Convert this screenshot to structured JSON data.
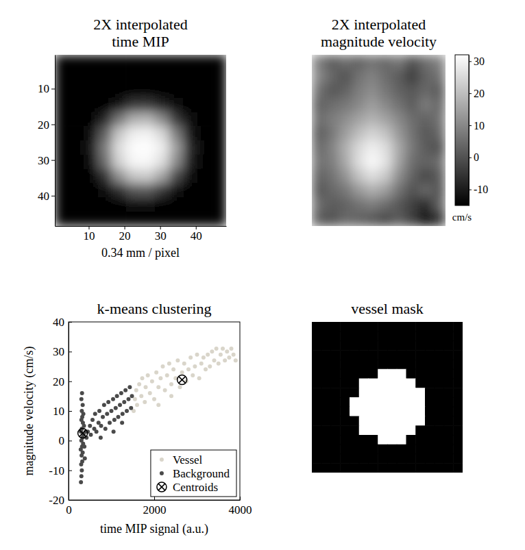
{
  "chart_data": [
    {
      "type": "heatmap",
      "title": "2X interpolated time MIP",
      "xlabel": "0.34 mm / pixel",
      "color": "gray",
      "xlim": [
        0.5,
        48.5
      ],
      "ylim": [
        48.5,
        0.5
      ],
      "xticks": [
        10,
        20,
        30,
        40
      ],
      "yticks": [
        10,
        20,
        30,
        40
      ],
      "xbins": [
        0.5,
        4.5,
        8.5,
        12.5,
        16.5,
        20.5,
        24.5,
        28.5,
        32.5,
        36.5,
        40.5,
        44.5,
        48.5
      ],
      "ybins": [
        0.5,
        4.5,
        8.5,
        12.5,
        16.5,
        20.5,
        24.5,
        28.5,
        32.5,
        36.5,
        40.5,
        44.5,
        48.5
      ],
      "zlim": [
        300,
        3800
      ],
      "cells": [
        [
          300,
          300,
          300,
          300,
          300,
          300,
          300,
          300,
          300,
          300,
          300,
          300
        ],
        [
          300,
          300,
          300,
          300,
          300,
          300,
          300,
          300,
          300,
          300,
          300,
          300
        ],
        [
          300,
          300,
          300,
          300,
          310,
          350,
          350,
          320,
          300,
          300,
          300,
          300
        ],
        [
          300,
          300,
          300,
          370,
          640,
          1050,
          1100,
          790,
          420,
          300,
          300,
          300
        ],
        [
          300,
          300,
          340,
          820,
          1940,
          2700,
          2780,
          2200,
          1050,
          390,
          300,
          300
        ],
        [
          300,
          300,
          470,
          1620,
          3020,
          3560,
          3620,
          3250,
          2000,
          620,
          300,
          300
        ],
        [
          300,
          300,
          580,
          2000,
          3350,
          3760,
          3790,
          3550,
          2450,
          820,
          320,
          300
        ],
        [
          300,
          300,
          520,
          1800,
          3180,
          3680,
          3710,
          3350,
          2200,
          680,
          310,
          300
        ],
        [
          300,
          300,
          370,
          1000,
          2290,
          3020,
          3100,
          2550,
          1320,
          450,
          300,
          300
        ],
        [
          300,
          300,
          300,
          420,
          930,
          1480,
          1530,
          1050,
          520,
          310,
          300,
          300
        ],
        [
          300,
          300,
          300,
          300,
          340,
          420,
          420,
          360,
          300,
          300,
          300,
          300
        ],
        [
          300,
          300,
          300,
          300,
          300,
          300,
          300,
          300,
          300,
          300,
          300,
          300
        ]
      ]
    },
    {
      "type": "heatmap",
      "title": "2X interpolated magnitude velocity",
      "color": "gray",
      "tick_labels": false,
      "zlim": [
        -15,
        32
      ],
      "zticks": [
        -10,
        0,
        10,
        20,
        30
      ],
      "zlabel": "cm/s",
      "cells": [
        [
          8,
          2,
          5,
          3,
          6,
          4,
          7,
          0,
          5,
          9
        ],
        [
          10,
          4,
          0,
          6,
          9,
          5,
          2,
          -4,
          3,
          6
        ],
        [
          6,
          1,
          3,
          8,
          11,
          7,
          3,
          1,
          4,
          2
        ],
        [
          3,
          5,
          7,
          10,
          14,
          10,
          6,
          2,
          8,
          4
        ],
        [
          5,
          8,
          11,
          15,
          18,
          15,
          10,
          5,
          3,
          6
        ],
        [
          2,
          7,
          14,
          20,
          24,
          21,
          13,
          6,
          1,
          4
        ],
        [
          4,
          9,
          17,
          25,
          29,
          26,
          16,
          7,
          2,
          0
        ],
        [
          6,
          8,
          16,
          26,
          31,
          27,
          15,
          5,
          3,
          5
        ],
        [
          3,
          6,
          12,
          21,
          26,
          22,
          11,
          3,
          -2,
          2
        ],
        [
          1,
          4,
          7,
          13,
          17,
          14,
          6,
          0,
          4,
          1
        ],
        [
          5,
          2,
          3,
          6,
          8,
          5,
          1,
          -3,
          -8,
          3
        ],
        [
          2,
          0,
          4,
          3,
          1,
          -2,
          2,
          -4,
          -12,
          -6
        ]
      ]
    },
    {
      "type": "scatter",
      "title": "k-means clustering",
      "xlabel": "time MIP signal (a.u.)",
      "ylabel": "magnitude velocity (cm/s)",
      "xlim": [
        0,
        4000
      ],
      "ylim": [
        -20,
        40
      ],
      "xticks": [
        0,
        2000,
        4000
      ],
      "yticks": [
        -20,
        -10,
        0,
        10,
        20,
        30,
        40
      ],
      "legend": "lower right",
      "series": [
        {
          "name": "Vessel",
          "color": "#d9d5ca",
          "marker": "circle",
          "x": [
            1520,
            1550,
            1580,
            1600,
            1650,
            1700,
            1720,
            1780,
            1800,
            1850,
            1900,
            1950,
            2000,
            2050,
            2100,
            2150,
            2200,
            2250,
            2300,
            2350,
            2400,
            2450,
            2500,
            2550,
            2600,
            2650,
            2700,
            2750,
            2800,
            2850,
            2900,
            2950,
            3000,
            3050,
            3100,
            3150,
            3200,
            3250,
            3300,
            3350,
            3400,
            3450,
            3500,
            3550,
            3600,
            3650,
            3700,
            3750,
            3800,
            3850,
            3900,
            2100,
            2400
          ],
          "values": [
            10,
            14,
            17,
            12,
            19,
            15,
            21,
            13,
            18,
            22,
            16,
            20,
            14,
            23,
            18,
            21,
            25,
            17,
            22,
            26,
            19,
            24,
            21,
            27,
            18,
            23,
            26,
            20,
            24,
            28,
            22,
            25,
            29,
            21,
            26,
            28,
            24,
            29,
            25,
            30,
            27,
            31,
            26,
            29,
            31,
            27,
            30,
            28,
            31,
            29,
            27,
            12,
            15
          ]
        },
        {
          "name": "Background",
          "color": "#4a4a4a",
          "marker": "circle",
          "x": [
            290,
            300,
            310,
            295,
            320,
            305,
            330,
            285,
            315,
            340,
            300,
            325,
            350,
            290,
            310,
            360,
            335,
            300,
            320,
            345,
            310,
            330,
            300,
            315,
            380,
            400,
            420,
            370,
            450,
            500,
            520,
            560,
            600,
            620,
            650,
            700,
            720,
            760,
            800,
            830,
            860,
            900,
            930,
            960,
            1000,
            1040,
            1070,
            1100,
            1130,
            1160,
            1200,
            1230,
            1260,
            1300,
            1330,
            1360,
            1400,
            1430,
            1460,
            1480,
            1050,
            750,
            1250
          ],
          "values": [
            -14,
            -12,
            -10,
            -8,
            -7,
            -5,
            -4,
            -3,
            -2,
            -1,
            0,
            1,
            2,
            3,
            4,
            5,
            6,
            7,
            8,
            9,
            10,
            12,
            14,
            16,
            -6,
            3,
            1,
            -2,
            3,
            5,
            2,
            7,
            4,
            9,
            3,
            6,
            10,
            5,
            8,
            12,
            4,
            9,
            13,
            6,
            10,
            14,
            7,
            11,
            15,
            8,
            12,
            16,
            9,
            13,
            17,
            10,
            14,
            18,
            11,
            15,
            3,
            1,
            6
          ]
        },
        {
          "name": "Centroids",
          "color": "#000000",
          "marker": "circle-x",
          "x": [
            330,
            2650
          ],
          "values": [
            2.5,
            20.5
          ]
        }
      ]
    },
    {
      "type": "heatmap",
      "title": "vessel mask",
      "color": "gray",
      "tick_labels": false,
      "cells": [
        [
          0,
          0,
          0,
          0,
          0,
          0,
          0,
          0,
          0,
          0,
          0,
          0,
          0,
          0,
          0,
          0
        ],
        [
          0,
          0,
          0,
          0,
          0,
          0,
          0,
          0,
          0,
          0,
          0,
          0,
          0,
          0,
          0,
          0
        ],
        [
          0,
          0,
          0,
          0,
          0,
          0,
          0,
          0,
          0,
          0,
          0,
          0,
          0,
          0,
          0,
          0
        ],
        [
          0,
          0,
          0,
          0,
          0,
          0,
          0,
          0,
          0,
          0,
          0,
          0,
          0,
          0,
          0,
          0
        ],
        [
          0,
          0,
          0,
          0,
          0,
          0,
          0,
          0,
          0,
          0,
          0,
          0,
          0,
          0,
          0,
          0
        ],
        [
          0,
          0,
          0,
          0,
          0,
          0,
          0,
          1,
          1,
          1,
          0,
          0,
          0,
          0,
          0,
          0
        ],
        [
          0,
          0,
          0,
          0,
          0,
          1,
          1,
          1,
          1,
          1,
          1,
          0,
          0,
          0,
          0,
          0
        ],
        [
          0,
          0,
          0,
          0,
          0,
          1,
          1,
          1,
          1,
          1,
          1,
          1,
          0,
          0,
          0,
          0
        ],
        [
          0,
          0,
          0,
          0,
          1,
          1,
          1,
          1,
          1,
          1,
          1,
          1,
          0,
          0,
          0,
          0
        ],
        [
          0,
          0,
          0,
          0,
          1,
          1,
          1,
          1,
          1,
          1,
          1,
          1,
          0,
          0,
          0,
          0
        ],
        [
          0,
          0,
          0,
          0,
          0,
          1,
          1,
          1,
          1,
          1,
          1,
          1,
          0,
          0,
          0,
          0
        ],
        [
          0,
          0,
          0,
          0,
          0,
          1,
          1,
          1,
          1,
          1,
          1,
          0,
          0,
          0,
          0,
          0
        ],
        [
          0,
          0,
          0,
          0,
          0,
          0,
          0,
          1,
          1,
          1,
          0,
          0,
          0,
          0,
          0,
          0
        ],
        [
          0,
          0,
          0,
          0,
          0,
          0,
          0,
          0,
          0,
          0,
          0,
          0,
          0,
          0,
          0,
          0
        ],
        [
          0,
          0,
          0,
          0,
          0,
          0,
          0,
          0,
          0,
          0,
          0,
          0,
          0,
          0,
          0,
          0
        ],
        [
          0,
          0,
          0,
          0,
          0,
          0,
          0,
          0,
          0,
          0,
          0,
          0,
          0,
          0,
          0,
          0
        ]
      ]
    }
  ]
}
